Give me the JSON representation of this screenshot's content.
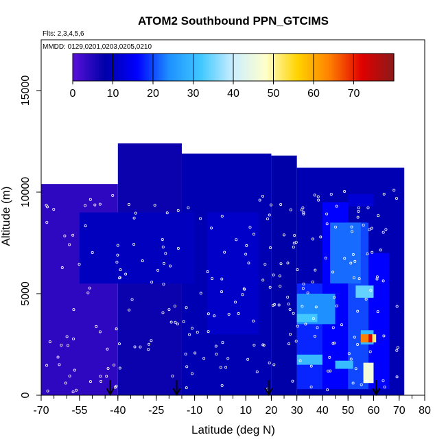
{
  "chart_data": {
    "type": "heatmap",
    "title": "ATOM2 Southbound PPN_GTCIMS",
    "subtitle_flights": "Flts: 2,3,4,5,6",
    "subtitle_dates": "MMDD: 0129,0201,0203,0205,0210",
    "xlabel": "Latitude (deg N)",
    "ylabel": "Altitude (m)",
    "xlim": [
      -70,
      80
    ],
    "ylim": [
      0,
      17500
    ],
    "x_ticks": [
      -70,
      -55,
      -40,
      -25,
      -10,
      0,
      10,
      20,
      30,
      40,
      50,
      60,
      70,
      80
    ],
    "y_ticks": [
      0,
      5000,
      10000,
      15000
    ],
    "colorbar": {
      "range": [
        0,
        80
      ],
      "ticks": [
        0,
        10,
        20,
        30,
        40,
        50,
        60,
        70
      ],
      "colors": [
        "#5a10d8",
        "#0000a8",
        "#0000ff",
        "#1e90ff",
        "#40c8ff",
        "#cceeff",
        "#ffffcc",
        "#ffd400",
        "#ff8000",
        "#e00000",
        "#8b1a1a"
      ]
    },
    "flight_markers_lat": [
      -43,
      -17,
      19,
      61
    ],
    "cells": [
      {
        "lat": [
          -70,
          -40
        ],
        "alt": [
          0,
          10400
        ],
        "value": 4
      },
      {
        "lat": [
          -40,
          -15
        ],
        "alt": [
          0,
          12400
        ],
        "value": 7
      },
      {
        "lat": [
          -15,
          20
        ],
        "alt": [
          0,
          11900
        ],
        "value": 9
      },
      {
        "lat": [
          20,
          30
        ],
        "alt": [
          0,
          11800
        ],
        "value": 8
      },
      {
        "lat": [
          -55,
          -10
        ],
        "alt": [
          5500,
          9000
        ],
        "value": 10
      },
      {
        "lat": [
          -5,
          15
        ],
        "alt": [
          3000,
          9000
        ],
        "value": 11
      },
      {
        "lat": [
          30,
          72
        ],
        "alt": [
          0,
          11200
        ],
        "value": 9
      },
      {
        "lat": [
          30,
          40
        ],
        "alt": [
          300,
          5500
        ],
        "value": 18
      },
      {
        "lat": [
          40,
          50
        ],
        "alt": [
          300,
          9500
        ],
        "value": 16
      },
      {
        "lat": [
          50,
          58
        ],
        "alt": [
          300,
          8500
        ],
        "value": 20
      },
      {
        "lat": [
          58,
          66
        ],
        "alt": [
          300,
          7000
        ],
        "value": 16
      },
      {
        "lat": [
          30,
          45
        ],
        "alt": [
          3500,
          5000
        ],
        "value": 24
      },
      {
        "lat": [
          43,
          55
        ],
        "alt": [
          5500,
          8500
        ],
        "value": 22
      },
      {
        "lat": [
          30,
          38
        ],
        "alt": [
          3600,
          4000
        ],
        "value": 32
      },
      {
        "lat": [
          30,
          40
        ],
        "alt": [
          1500,
          2000
        ],
        "value": 30
      },
      {
        "lat": [
          45,
          52
        ],
        "alt": [
          1300,
          1700
        ],
        "value": 30
      },
      {
        "lat": [
          53,
          60
        ],
        "alt": [
          4800,
          5400
        ],
        "value": 34
      },
      {
        "lat": [
          55,
          60
        ],
        "alt": [
          2500,
          3200
        ],
        "value": 30
      },
      {
        "lat": [
          56,
          60
        ],
        "alt": [
          600,
          1600
        ],
        "value": 46
      },
      {
        "lat": [
          55,
          58
        ],
        "alt": [
          2600,
          3000
        ],
        "value": 64
      },
      {
        "lat": [
          58,
          59.5
        ],
        "alt": [
          2600,
          3000
        ],
        "value": 72
      },
      {
        "lat": [
          59.5,
          61
        ],
        "alt": [
          2600,
          3000
        ],
        "value": 52
      },
      {
        "lat": [
          50,
          60
        ],
        "alt": [
          9300,
          9900
        ],
        "value": 12
      }
    ]
  }
}
